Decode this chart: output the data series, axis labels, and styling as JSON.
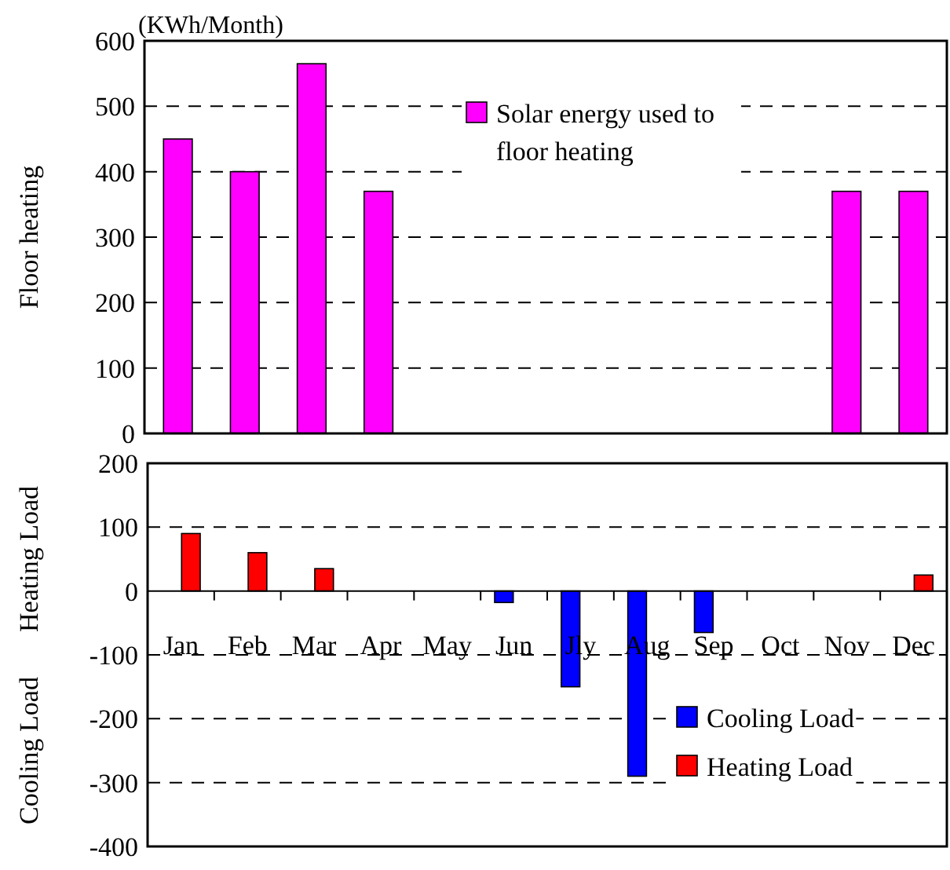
{
  "chart_data": [
    {
      "type": "bar",
      "title": "(KWh/Month)",
      "ylabel": "Floor heating",
      "categories": [
        null,
        null,
        null,
        null,
        null,
        null,
        null,
        null,
        null,
        null,
        null,
        null
      ],
      "series": [
        {
          "name": "Solar energy used to floor heating",
          "color": "#ff00ff",
          "values": [
            450,
            400,
            565,
            370,
            null,
            null,
            null,
            null,
            null,
            null,
            370,
            370
          ]
        }
      ],
      "ylim": [
        0,
        600
      ],
      "yticks": [
        0,
        100,
        200,
        300,
        400,
        500,
        600
      ],
      "grid": "y",
      "legend": "top"
    },
    {
      "type": "bar",
      "ylabel": "Heating Load",
      "annotations": [
        "Cooling Load"
      ],
      "categories": [
        "Jan",
        "Feb",
        "Mar",
        "Apr",
        "May",
        "Jun",
        "Jly",
        "Aug",
        "Sep",
        "Oct",
        "Nov",
        "Dec"
      ],
      "series": [
        {
          "name": "Cooling Load",
          "color": "#0000ff",
          "values": [
            null,
            null,
            null,
            null,
            null,
            -18,
            -150,
            -290,
            -65,
            null,
            null,
            null
          ]
        },
        {
          "name": "Heating Load",
          "color": "#ff0000",
          "values": [
            90,
            60,
            35,
            null,
            null,
            null,
            null,
            null,
            null,
            null,
            null,
            25
          ]
        }
      ],
      "ylim": [
        -400,
        200
      ],
      "yticks": [
        -400,
        -300,
        -200,
        -100,
        0,
        100,
        200
      ],
      "grid": "y",
      "legend": "bottom right"
    }
  ]
}
